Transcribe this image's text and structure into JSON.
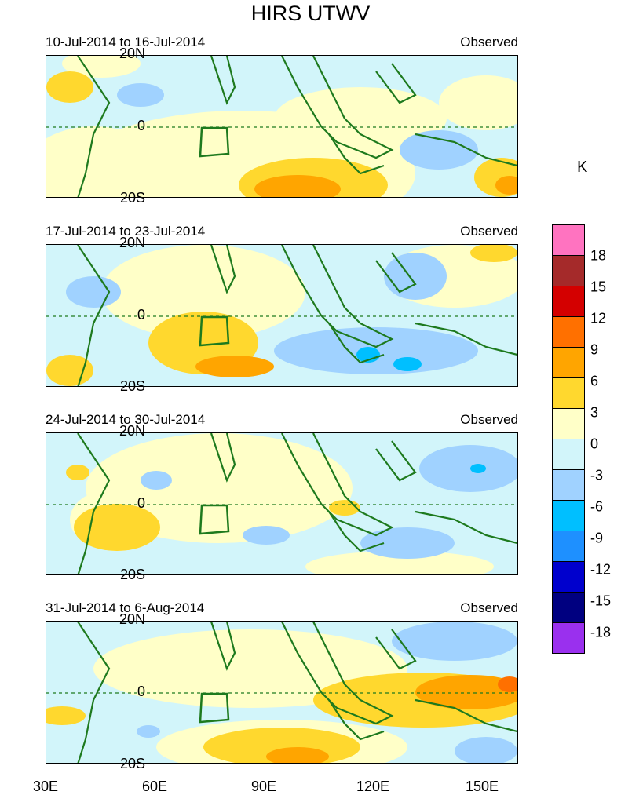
{
  "title": "HIRS UTWV",
  "panels": [
    {
      "period": "10-Jul-2014 to 16-Jul-2014",
      "label": "Observed"
    },
    {
      "period": "17-Jul-2014 to 23-Jul-2014",
      "label": "Observed"
    },
    {
      "period": "24-Jul-2014 to 30-Jul-2014",
      "label": "Observed"
    },
    {
      "period": "31-Jul-2014 to 6-Aug-2014",
      "label": "Observed"
    }
  ],
  "lat_labels": [
    "20N",
    "0",
    "20S"
  ],
  "lon_labels": [
    "30E",
    "60E",
    "90E",
    "120E",
    "150E"
  ],
  "colorbar": {
    "unit": "K",
    "levels": [
      "18",
      "15",
      "12",
      "9",
      "6",
      "3",
      "0",
      "-3",
      "-6",
      "-9",
      "-12",
      "-15",
      "-18"
    ],
    "colors": [
      "#ff73c0",
      "#a52a2a",
      "#d40000",
      "#ff7000",
      "#ffa500",
      "#ffd82e",
      "#ffffc8",
      "#d2f5fa",
      "#a0d2ff",
      "#00bfff",
      "#1e90ff",
      "#0000cd",
      "#000080",
      "#9a30ee"
    ]
  },
  "map_colors": {
    "coast": "#1e7a1e",
    "equator": "#1e7a1e"
  }
}
